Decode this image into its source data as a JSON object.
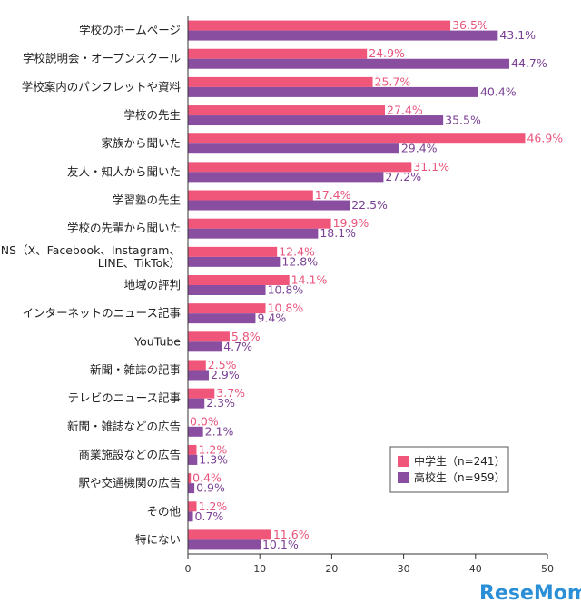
{
  "colors": {
    "middle": "#f0567a",
    "high": "#8a4ea0",
    "middle_label": "#e8557c",
    "high_label": "#7a3f94"
  },
  "legend": [
    {
      "name": "中学生（n=241）",
      "color": "#f0567a"
    },
    {
      "name": "高校生（n=959）",
      "color": "#8a4ea0"
    }
  ],
  "brand": "ReseMom",
  "chart_data": {
    "type": "bar",
    "orientation": "horizontal",
    "categories": [
      [
        "学校のホームページ"
      ],
      [
        "学校説明会・オープンスクール"
      ],
      [
        "学校案内のパンフレットや資料"
      ],
      [
        "学校の先生"
      ],
      [
        "家族から聞いた"
      ],
      [
        "友人・知人から聞いた"
      ],
      [
        "学習塾の先生"
      ],
      [
        "学校の先輩から聞いた"
      ],
      [
        "SNS（X、Facebook、Instagram、",
        "LINE、TikTok）"
      ],
      [
        "地域の評判"
      ],
      [
        "インターネットのニュース記事"
      ],
      [
        "YouTube"
      ],
      [
        "新聞・雑誌の記事"
      ],
      [
        "テレビのニュース記事"
      ],
      [
        "新聞・雑誌などの広告"
      ],
      [
        "商業施設などの広告"
      ],
      [
        "駅や交通機関の広告"
      ],
      [
        "その他"
      ],
      [
        "特にない"
      ]
    ],
    "series": [
      {
        "name": "中学生（n=241）",
        "values": [
          36.5,
          24.9,
          25.7,
          27.4,
          46.9,
          31.1,
          17.4,
          19.9,
          12.4,
          14.1,
          10.8,
          5.8,
          2.5,
          3.7,
          0.0,
          1.2,
          0.4,
          1.2,
          11.6
        ],
        "labels": [
          "36.5%",
          "24.9%",
          "25.7%",
          "27.4%",
          "46.9%",
          "31.1%",
          "17.4%",
          "19.9%",
          "12.4%",
          "14.1%",
          "10.8%",
          "5.8%",
          "2.5%",
          "3.7%",
          "0.0%",
          "1.2%",
          "0.4%",
          "1.2%",
          "11.6%"
        ]
      },
      {
        "name": "高校生（n=959）",
        "values": [
          43.1,
          44.7,
          40.4,
          35.5,
          29.4,
          27.2,
          22.5,
          18.1,
          12.8,
          10.8,
          9.4,
          4.7,
          2.9,
          2.3,
          2.1,
          1.3,
          0.9,
          0.7,
          10.1
        ],
        "labels": [
          "43.1%",
          "44.7%",
          "40.4%",
          "35.5%",
          "29.4%",
          "27.2%",
          "22.5%",
          "18.1%",
          "12.8%",
          "10.8%",
          "9.4%",
          "4.7%",
          "2.9%",
          "2.3%",
          "2.1%",
          "1.3%",
          "0.9%",
          "0.7%",
          "10.1%"
        ]
      }
    ],
    "xlim": [
      0,
      50
    ],
    "xticks": [
      "0",
      "10",
      "20",
      "30",
      "40",
      "50"
    ],
    "legend_position": "lower-right"
  }
}
